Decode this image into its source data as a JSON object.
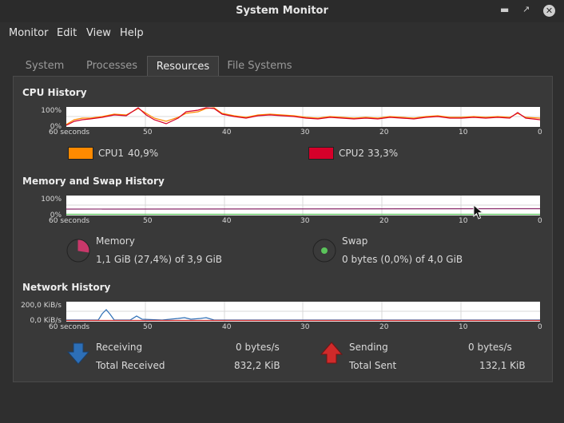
{
  "window": {
    "title": "System Monitor"
  },
  "menu": [
    "Monitor",
    "Edit",
    "View",
    "Help"
  ],
  "tabs": [
    "System",
    "Processes",
    "Resources",
    "File Systems"
  ],
  "active_tab": "Resources",
  "cpu": {
    "title": "CPU History",
    "y_top": "100%",
    "y_bottom": "0%",
    "x_start": "60 seconds",
    "ticks": [
      "50",
      "40",
      "30",
      "20",
      "10",
      "0"
    ],
    "cpu1": {
      "label": "CPU1",
      "value": "40,9%",
      "color": "#ff8a00"
    },
    "cpu2": {
      "label": "CPU2",
      "value": "33,3%",
      "color": "#d6002a"
    }
  },
  "memory": {
    "title": "Memory and Swap History",
    "y_top": "100%",
    "y_bottom": "0%",
    "x_start": "60 seconds",
    "ticks": [
      "50",
      "40",
      "30",
      "20",
      "10",
      "0"
    ],
    "mem_label": "Memory",
    "mem_value": "1,1 GiB (27,4%) of 3,9 GiB",
    "mem_fraction": 0.274,
    "mem_color": "#c8386a",
    "swap_label": "Swap",
    "swap_value": "0 bytes (0,0%) of 4,0 GiB",
    "swap_fraction": 0.0,
    "swap_color": "#5bc45b"
  },
  "network": {
    "title": "Network History",
    "y_top": "200,0 KiB/s",
    "y_bottom": "0,0 KiB/s",
    "x_start": "60 seconds",
    "ticks": [
      "50",
      "40",
      "30",
      "20",
      "10",
      "0"
    ],
    "receiving_label": "Receiving",
    "receiving_value": "0 bytes/s",
    "total_received_label": "Total Received",
    "total_received_value": "832,2 KiB",
    "sending_label": "Sending",
    "sending_value": "0 bytes/s",
    "total_sent_label": "Total Sent",
    "total_sent_value": "132,1 KiB",
    "receiving_color": "#2d6fb7",
    "sending_color": "#d02a2a"
  }
}
